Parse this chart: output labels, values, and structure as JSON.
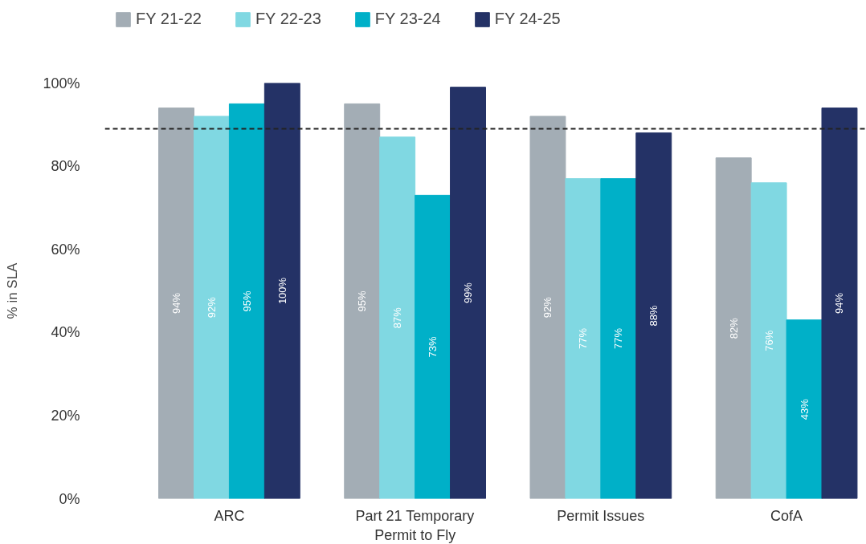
{
  "chart_data": {
    "type": "bar",
    "ylabel": "% in SLA",
    "categories": [
      "ARC",
      "Part 21 Temporary Permit to Fly",
      "Permit Issues",
      "CofA"
    ],
    "series": [
      {
        "name": "FY 21-22",
        "color": "#a3adb5",
        "values": [
          94,
          95,
          92,
          82
        ],
        "value_labels": [
          "94%",
          "95%",
          "92%",
          "82%"
        ]
      },
      {
        "name": "FY 22-23",
        "color": "#80d8e2",
        "values": [
          92,
          87,
          77,
          76
        ],
        "value_labels": [
          "92%",
          "87%",
          "77%",
          "76%"
        ]
      },
      {
        "name": "FY 23-24",
        "color": "#00b0c8",
        "values": [
          95,
          73,
          77,
          43
        ],
        "value_labels": [
          "95%",
          "73%",
          "77%",
          "43%"
        ]
      },
      {
        "name": "FY 24-25",
        "color": "#243266",
        "values": [
          100,
          99,
          88,
          94
        ],
        "value_labels": [
          "100%",
          "99%",
          "88%",
          "94%"
        ]
      }
    ],
    "ylim": [
      0,
      100
    ],
    "yticks": [
      {
        "value": 0,
        "label": "0%"
      },
      {
        "value": 20,
        "label": "20%"
      },
      {
        "value": 40,
        "label": "40%"
      },
      {
        "value": 60,
        "label": "60%"
      },
      {
        "value": 80,
        "label": "80%"
      },
      {
        "value": 100,
        "label": "100%"
      }
    ],
    "ref_lines": [
      {
        "axis": "y",
        "value": 89,
        "color": "#222222",
        "line_style": "dashed"
      }
    ],
    "legend": "top left",
    "grid": false
  }
}
